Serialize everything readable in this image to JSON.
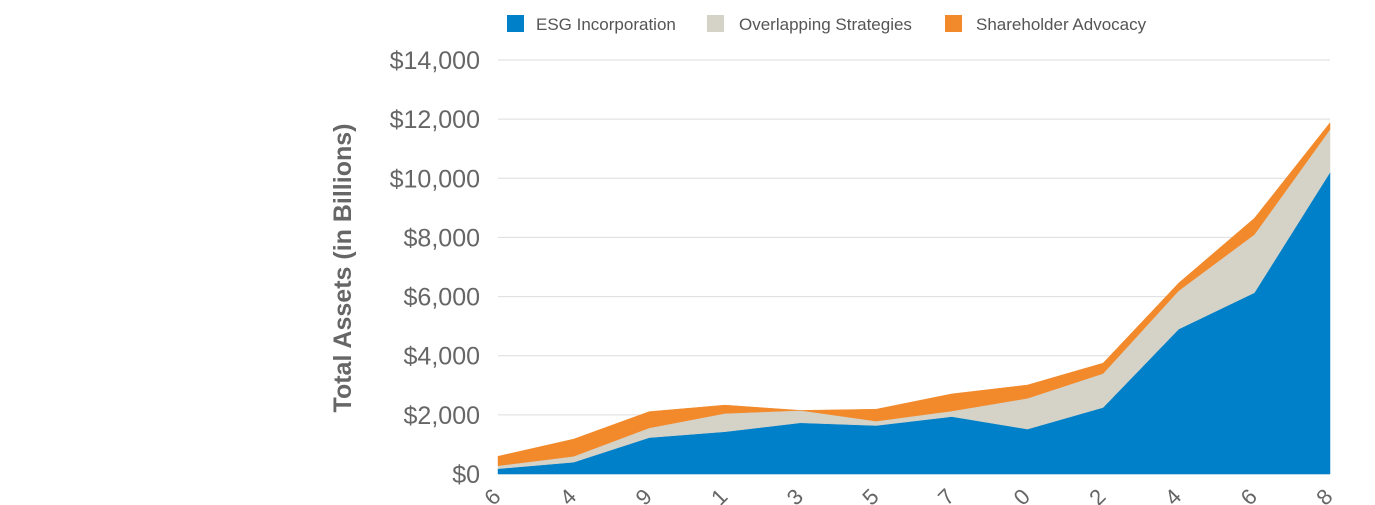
{
  "chart_data": {
    "type": "area",
    "stacked": true,
    "title": "",
    "xlabel": "",
    "ylabel": "Total Assets (in Billions)",
    "ylim": [
      0,
      14000
    ],
    "y_ticks": [
      0,
      2000,
      4000,
      6000,
      8000,
      10000,
      12000,
      14000
    ],
    "y_tick_labels": [
      "$0",
      "$2,000",
      "$4,000",
      "$6,000",
      "$8,000",
      "$10,000",
      "$12,000",
      "$14,000"
    ],
    "x_tick_labels": [
      "6",
      "4",
      "9",
      "1",
      "3",
      "5",
      "7",
      "0",
      "2",
      "4",
      "6",
      "8"
    ],
    "grid": true,
    "legend_position": "top",
    "series": [
      {
        "name": "ESG Incorporation",
        "color": "#0080C8",
        "values": [
          180,
          400,
          1230,
          1430,
          1730,
          1640,
          1940,
          1520,
          2250,
          4900,
          6130,
          10200
        ]
      },
      {
        "name": "Overlapping Strategies",
        "color": "#D5D2C8",
        "values": [
          100,
          200,
          330,
          620,
          420,
          150,
          190,
          1040,
          1150,
          1300,
          1970,
          1450
        ]
      },
      {
        "name": "Shareholder Advocacy",
        "color": "#F28A2B",
        "values": [
          320,
          580,
          550,
          280,
          0,
          400,
          580,
          450,
          350,
          260,
          550,
          230
        ]
      }
    ]
  }
}
